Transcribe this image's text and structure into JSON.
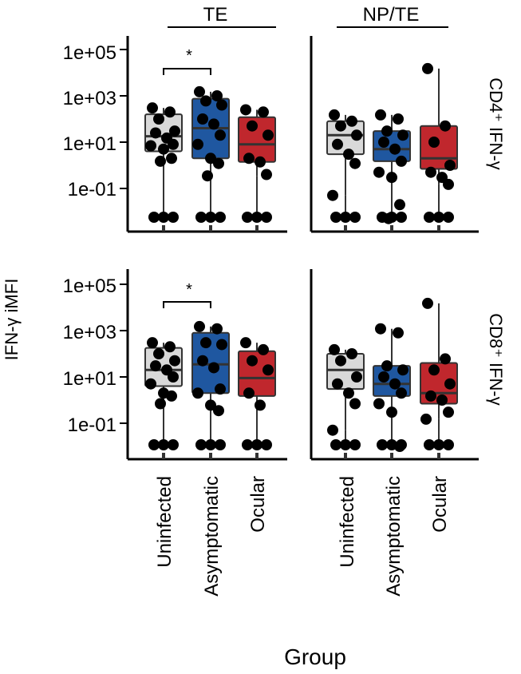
{
  "chart_data": {
    "type": "box",
    "scale": "log10",
    "ylabel": "IFN-γ iMFI",
    "xlabel": "Group",
    "tick_labels": [
      "1e+05",
      "1e+03",
      "1e+01",
      "1e-01"
    ],
    "tick_values": [
      100000,
      1000,
      10,
      0.1
    ],
    "facet_columns": [
      "TE",
      "NP/TE"
    ],
    "categories": [
      "Uninfected",
      "Asymptomatic",
      "Ocular"
    ],
    "colors": {
      "Uninfected": "#d9d9d9",
      "Asymptomatic": "#1f57a0",
      "Ocular": "#c0272d"
    },
    "significance": {
      "label": "*",
      "from": "Uninfected",
      "to": "Asymptomatic",
      "column": "TE"
    },
    "panels": [
      {
        "row_label": "CD4⁺ IFN-γ",
        "column": "TE",
        "boxes": [
          {
            "group": "Uninfected",
            "q1": 4,
            "median": 18,
            "q3": 160,
            "whisker_low": 1.5,
            "whisker_high": 300,
            "points": [
              300,
              200,
              100,
              30,
              25,
              15,
              8,
              7,
              5,
              2,
              1.5,
              0,
              0,
              0
            ]
          },
          {
            "group": "Asymptomatic",
            "q1": 2,
            "median": 40,
            "q3": 750,
            "whisker_low": 0.35,
            "whisker_high": 1500,
            "points": [
              1500,
              1000,
              600,
              400,
              100,
              60,
              20,
              8,
              2,
              1.2,
              0.35,
              0,
              0,
              0
            ]
          },
          {
            "group": "Ocular",
            "q1": 1.4,
            "median": 8,
            "q3": 120,
            "whisker_low": 0.35,
            "whisker_high": 250,
            "points": [
              250,
              200,
              50,
              20,
              2,
              1.4,
              0.4,
              0,
              0,
              0
            ]
          }
        ]
      },
      {
        "row_label": "CD4⁺ IFN-γ",
        "column": "NP/TE",
        "boxes": [
          {
            "group": "Uninfected",
            "q1": 3,
            "median": 20,
            "q3": 80,
            "whisker_low": 0.05,
            "whisker_high": 150,
            "points": [
              150,
              80,
              50,
              20,
              8,
              3,
              1.2,
              0.05,
              0,
              0,
              0
            ]
          },
          {
            "group": "Asymptomatic",
            "q1": 1.5,
            "median": 5,
            "q3": 30,
            "whisker_low": 0.005,
            "whisker_high": 150,
            "points": [
              150,
              100,
              30,
              20,
              10,
              5,
              1.5,
              0.5,
              0.3,
              0.02,
              0.005,
              0,
              0,
              0
            ]
          },
          {
            "group": "Ocular",
            "q1": 0.7,
            "median": 2,
            "q3": 50,
            "whisker_low": 0.15,
            "whisker_high": 15000,
            "points": [
              15000,
              50,
              10,
              1,
              0.5,
              0.3,
              0.15,
              0,
              0,
              0
            ]
          }
        ]
      },
      {
        "row_label": "CD8⁺ IFN-γ",
        "column": "TE",
        "boxes": [
          {
            "group": "Uninfected",
            "q1": 4,
            "median": 20,
            "q3": 180,
            "whisker_low": 0.7,
            "whisker_high": 300,
            "points": [
              300,
              200,
              100,
              50,
              30,
              20,
              10,
              5,
              2,
              1.5,
              0.7,
              0,
              0,
              0
            ]
          },
          {
            "group": "Asymptomatic",
            "q1": 2,
            "median": 35,
            "q3": 800,
            "whisker_low": 0.35,
            "whisker_high": 1500,
            "points": [
              1500,
              1200,
              300,
              250,
              50,
              25,
              3,
              2,
              0.6,
              0.35,
              0,
              0,
              0
            ]
          },
          {
            "group": "Ocular",
            "q1": 1.5,
            "median": 9,
            "q3": 130,
            "whisker_low": 0.4,
            "whisker_high": 300,
            "points": [
              300,
              150,
              50,
              20,
              2,
              0.6,
              0,
              0,
              0
            ]
          }
        ]
      },
      {
        "row_label": "CD8⁺ IFN-γ",
        "column": "NP/TE",
        "boxes": [
          {
            "group": "Uninfected",
            "q1": 3,
            "median": 20,
            "q3": 100,
            "whisker_low": 0.05,
            "whisker_high": 150,
            "points": [
              150,
              100,
              50,
              10,
              5,
              2,
              0.7,
              0.05,
              0,
              0,
              0
            ]
          },
          {
            "group": "Asymptomatic",
            "q1": 1.5,
            "median": 5,
            "q3": 30,
            "whisker_low": 0.01,
            "whisker_high": 1200,
            "points": [
              1200,
              800,
              30,
              20,
              10,
              5,
              2,
              0.7,
              0.3,
              0.01,
              0,
              0,
              0
            ]
          },
          {
            "group": "Ocular",
            "q1": 0.7,
            "median": 2,
            "q3": 40,
            "whisker_low": 0.15,
            "whisker_high": 15000,
            "points": [
              15000,
              60,
              20,
              5,
              1.5,
              1,
              0.3,
              0.15,
              0,
              0,
              0
            ]
          }
        ]
      }
    ]
  }
}
